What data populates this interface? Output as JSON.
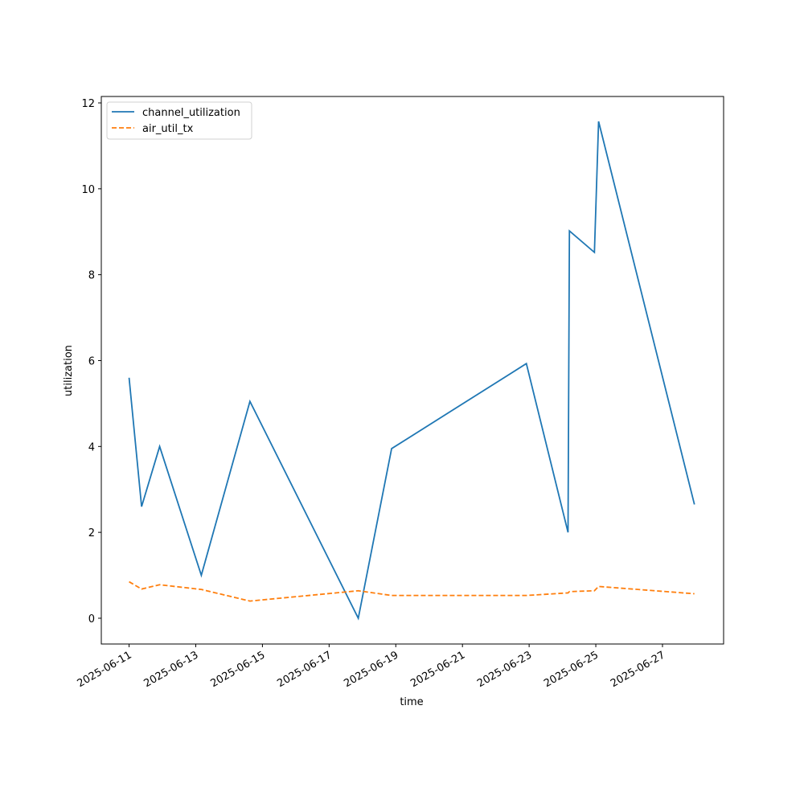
{
  "chart_data": {
    "type": "line",
    "xlabel": "time",
    "ylabel": "utilization",
    "x": [
      "2025-06-11T00:00",
      "2025-06-11T09:00",
      "2025-06-11T22:00",
      "2025-06-13T04:00",
      "2025-06-14T15:00",
      "2025-06-17T21:00",
      "2025-06-18T21:00",
      "2025-06-22T22:00",
      "2025-06-24T04:00",
      "2025-06-24T05:00",
      "2025-06-24T23:00",
      "2025-06-25T02:00",
      "2025-06-27T23:00"
    ],
    "series": [
      {
        "name": "channel_utilization",
        "color": "#1f77b4",
        "dash": false,
        "values": [
          5.6,
          2.6,
          4.0,
          1.0,
          5.05,
          0.0,
          3.95,
          5.93,
          2.0,
          9.02,
          8.52,
          11.57,
          2.65
        ]
      },
      {
        "name": "air_util_tx",
        "color": "#ff7f0e",
        "dash": true,
        "values": [
          0.85,
          0.68,
          0.78,
          0.67,
          0.4,
          0.64,
          0.53,
          0.53,
          0.59,
          0.62,
          0.64,
          0.74,
          0.57
        ]
      }
    ],
    "xlim": [
      "2025-06-10T04:00",
      "2025-06-28T20:00"
    ],
    "xticks": [
      "2025-06-11",
      "2025-06-13",
      "2025-06-15",
      "2025-06-17",
      "2025-06-19",
      "2025-06-21",
      "2025-06-23",
      "2025-06-25",
      "2025-06-27"
    ],
    "ylim": [
      -0.6,
      12.15
    ],
    "yticks": [
      0,
      2,
      4,
      6,
      8,
      10,
      12
    ],
    "legend": "upper left",
    "grid": false
  }
}
